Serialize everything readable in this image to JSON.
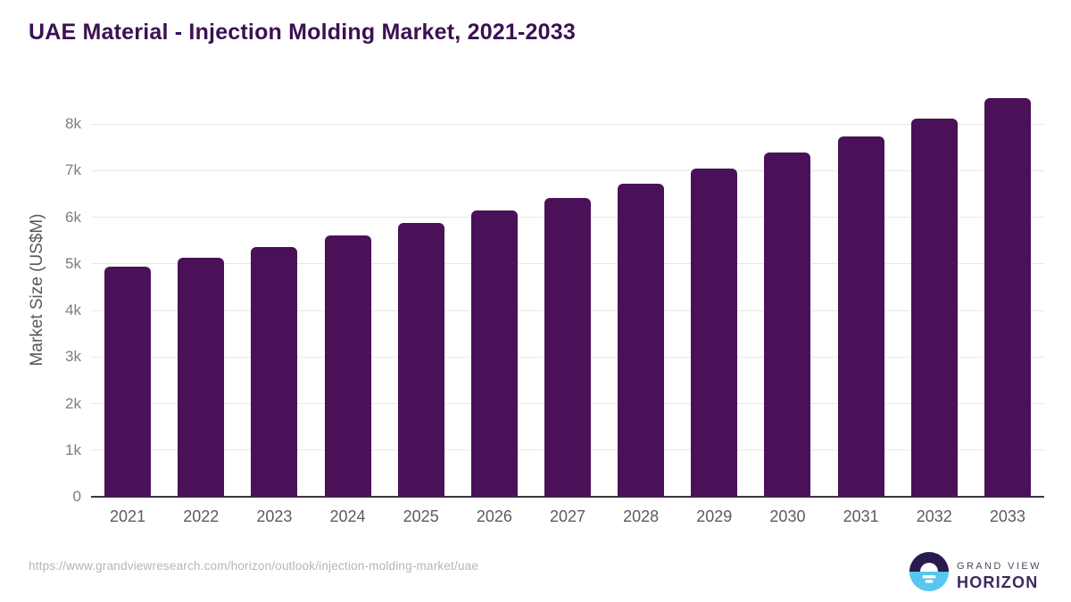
{
  "page_title": "UAE Material - Injection Molding Market, 2021-2033",
  "chart_data": {
    "type": "bar",
    "title": "UAE Material - Injection Molding Market, 2021-2033",
    "categories": [
      "2021",
      "2022",
      "2023",
      "2024",
      "2025",
      "2026",
      "2027",
      "2028",
      "2029",
      "2030",
      "2031",
      "2032",
      "2033"
    ],
    "values": [
      4940,
      5120,
      5350,
      5610,
      5870,
      6140,
      6410,
      6720,
      7040,
      7380,
      7740,
      8120,
      8550
    ],
    "unit": "US$M",
    "xlabel": "",
    "ylabel": "Market Size (US$M)",
    "ylim": [
      0,
      8750
    ],
    "yticks": [
      {
        "value": 0,
        "label": "0"
      },
      {
        "value": 1000,
        "label": "1k"
      },
      {
        "value": 2000,
        "label": "2k"
      },
      {
        "value": 3000,
        "label": "3k"
      },
      {
        "value": 4000,
        "label": "4k"
      },
      {
        "value": 5000,
        "label": "5k"
      },
      {
        "value": 6000,
        "label": "6k"
      },
      {
        "value": 7000,
        "label": "7k"
      },
      {
        "value": 8000,
        "label": "8k"
      }
    ],
    "grid": "horizontal",
    "legend": "none"
  },
  "footer": {
    "source_url": "https://www.grandviewresearch.com/horizon/outlook/injection-molding-market/uae",
    "brand": {
      "line1": "GRAND VIEW",
      "line2": "HORIZON"
    }
  },
  "colors": {
    "bar": "#4a1158",
    "title": "#3c1053",
    "y_axis_title": "#595959",
    "ytick": "#7d7d7d",
    "xtick": "#5c5c5c",
    "grid": "#e8e8e8",
    "axis": "#3a3a3a",
    "url": "#b5b5b5",
    "logo_dark": "#2b1b4d",
    "logo_blue": "#59c6f0",
    "logo_sun": "#ffffff",
    "brand_line1": "#4d4663",
    "brand_line2": "#3b2a5e"
  }
}
